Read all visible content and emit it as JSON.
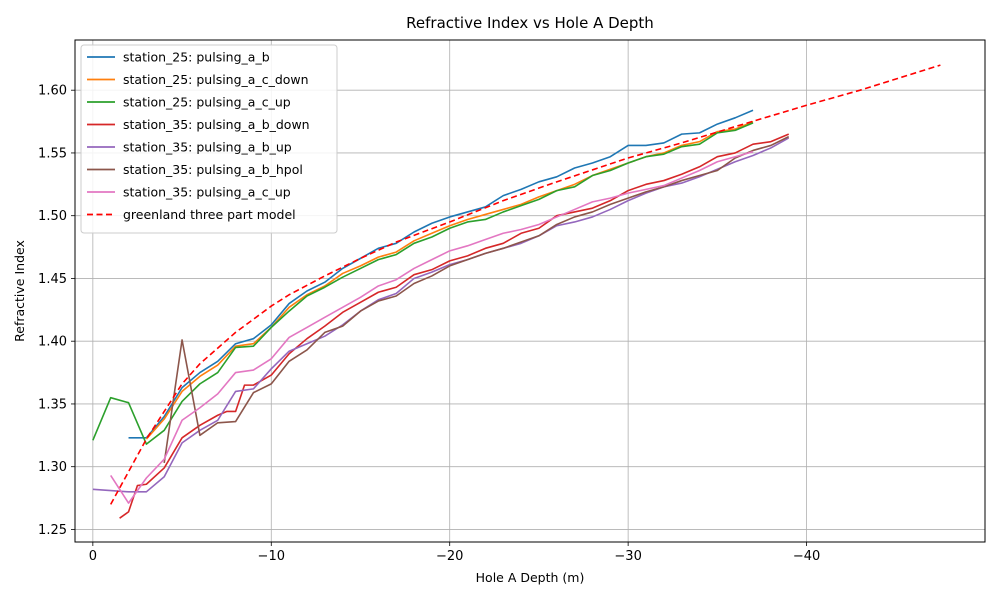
{
  "chart_data": {
    "type": "line",
    "title": "Refractive Index vs Hole A Depth",
    "xlabel": "Hole A Depth (m)",
    "ylabel": "Refractive Index",
    "xlim": [
      1,
      -50
    ],
    "ylim": [
      1.24,
      1.64
    ],
    "x_ticks": [
      0,
      -10,
      -20,
      -30,
      -40
    ],
    "x_tick_labels": [
      "0",
      "−10",
      "−20",
      "−30",
      "−40"
    ],
    "y_ticks": [
      1.25,
      1.3,
      1.35,
      1.4,
      1.45,
      1.5,
      1.55,
      1.6
    ],
    "y_tick_labels": [
      "1.25",
      "1.30",
      "1.35",
      "1.40",
      "1.45",
      "1.50",
      "1.55",
      "1.60"
    ],
    "grid": true,
    "legend_position": "top-left",
    "series": [
      {
        "name": "station_25: pulsing_a_b",
        "color": "#1f77b4",
        "dash": "solid",
        "x": [
          -2,
          -3,
          -4,
          -5,
          -6,
          -7,
          -8,
          -9,
          -10,
          -11,
          -12,
          -13,
          -14,
          -15,
          -16,
          -17,
          -18,
          -19,
          -20,
          -21,
          -22,
          -23,
          -24,
          -25,
          -26,
          -27,
          -28,
          -29,
          -30,
          -31,
          -32,
          -33,
          -34,
          -35,
          -36,
          -37
        ],
        "y": [
          1.323,
          1.323,
          1.34,
          1.363,
          1.375,
          1.384,
          1.398,
          1.402,
          1.413,
          1.43,
          1.44,
          1.447,
          1.458,
          1.466,
          1.474,
          1.478,
          1.487,
          1.494,
          1.499,
          1.503,
          1.507,
          1.516,
          1.521,
          1.527,
          1.531,
          1.538,
          1.542,
          1.547,
          1.556,
          1.556,
          1.558,
          1.565,
          1.566,
          1.573,
          1.578,
          1.584
        ]
      },
      {
        "name": "station_25: pulsing_a_c_down",
        "color": "#ff7f0e",
        "dash": "solid",
        "x": [
          -3,
          -4,
          -5,
          -6,
          -7,
          -8,
          -9,
          -10,
          -11,
          -12,
          -13,
          -14,
          -15,
          -16,
          -17,
          -18,
          -19,
          -20,
          -21,
          -22,
          -23,
          -24,
          -25,
          -26,
          -27,
          -28,
          -29,
          -30,
          -31,
          -32,
          -33,
          -34,
          -35,
          -36,
          -37
        ],
        "y": [
          1.322,
          1.338,
          1.36,
          1.372,
          1.381,
          1.396,
          1.398,
          1.411,
          1.427,
          1.437,
          1.444,
          1.454,
          1.46,
          1.467,
          1.471,
          1.48,
          1.486,
          1.492,
          1.497,
          1.501,
          1.505,
          1.509,
          1.515,
          1.52,
          1.525,
          1.532,
          1.537,
          1.542,
          1.547,
          1.55,
          1.556,
          1.559,
          1.567,
          1.569,
          1.575
        ]
      },
      {
        "name": "station_25: pulsing_a_c_up",
        "color": "#2ca02c",
        "dash": "solid",
        "x": [
          0,
          -1,
          -2,
          -3,
          -4,
          -5,
          -6,
          -7,
          -8,
          -9,
          -10,
          -11,
          -12,
          -13,
          -14,
          -15,
          -16,
          -17,
          -18,
          -19,
          -20,
          -21,
          -22,
          -23,
          -24,
          -25,
          -26,
          -27,
          -28,
          -29,
          -30,
          -31,
          -32,
          -33,
          -34,
          -35,
          -36,
          -37
        ],
        "y": [
          1.321,
          1.355,
          1.351,
          1.318,
          1.329,
          1.352,
          1.366,
          1.375,
          1.395,
          1.396,
          1.411,
          1.424,
          1.436,
          1.443,
          1.451,
          1.458,
          1.465,
          1.469,
          1.478,
          1.483,
          1.49,
          1.495,
          1.497,
          1.503,
          1.508,
          1.513,
          1.52,
          1.523,
          1.532,
          1.536,
          1.542,
          1.547,
          1.549,
          1.555,
          1.557,
          1.566,
          1.568,
          1.574
        ]
      },
      {
        "name": "station_35: pulsing_a_b_down",
        "color": "#d62728",
        "dash": "solid",
        "x": [
          -1.5,
          -2,
          -2.5,
          -3,
          -4,
          -5,
          -6,
          -7,
          -7.5,
          -8,
          -8.5,
          -9,
          -10,
          -11,
          -12,
          -13,
          -14,
          -15,
          -16,
          -17,
          -18,
          -19,
          -20,
          -21,
          -22,
          -23,
          -24,
          -25,
          -26,
          -27,
          -28,
          -29,
          -30,
          -31,
          -32,
          -33,
          -34,
          -35,
          -36,
          -37,
          -38,
          -39
        ],
        "y": [
          1.259,
          1.264,
          1.285,
          1.286,
          1.299,
          1.323,
          1.333,
          1.341,
          1.344,
          1.344,
          1.365,
          1.365,
          1.373,
          1.39,
          1.402,
          1.412,
          1.423,
          1.431,
          1.439,
          1.443,
          1.453,
          1.457,
          1.464,
          1.468,
          1.474,
          1.478,
          1.486,
          1.49,
          1.5,
          1.503,
          1.506,
          1.512,
          1.52,
          1.525,
          1.528,
          1.533,
          1.539,
          1.547,
          1.55,
          1.557,
          1.559,
          1.565
        ]
      },
      {
        "name": "station_35: pulsing_a_b_up",
        "color": "#9467bd",
        "dash": "solid",
        "x": [
          0,
          -1,
          -2,
          -3,
          -4,
          -5,
          -6,
          -7,
          -8,
          -9,
          -10,
          -11,
          -12,
          -13,
          -14,
          -15,
          -16,
          -17,
          -18,
          -19,
          -20,
          -21,
          -22,
          -23,
          -24,
          -25,
          -26,
          -27,
          -28,
          -29,
          -30,
          -31,
          -32,
          -33,
          -34,
          -35,
          -36,
          -37,
          -38,
          -39
        ],
        "y": [
          1.282,
          1.281,
          1.28,
          1.28,
          1.292,
          1.319,
          1.329,
          1.337,
          1.36,
          1.362,
          1.378,
          1.392,
          1.398,
          1.404,
          1.413,
          1.424,
          1.433,
          1.438,
          1.45,
          1.455,
          1.461,
          1.465,
          1.47,
          1.474,
          1.478,
          1.484,
          1.492,
          1.495,
          1.499,
          1.505,
          1.512,
          1.518,
          1.523,
          1.526,
          1.531,
          1.537,
          1.543,
          1.548,
          1.554,
          1.562
        ]
      },
      {
        "name": "station_35: pulsing_a_b_hpol",
        "color": "#8c564b",
        "dash": "solid",
        "x": [
          -4,
          -5,
          -6,
          -7,
          -8,
          -9,
          -10,
          -11,
          -12,
          -13,
          -14,
          -15,
          -16,
          -17,
          -18,
          -19,
          -20,
          -21,
          -22,
          -23,
          -24,
          -25,
          -26,
          -27,
          -28,
          -29,
          -30,
          -31,
          -32,
          -33,
          -34,
          -35,
          -36,
          -37,
          -38,
          -39
        ],
        "y": [
          1.303,
          1.401,
          1.325,
          1.335,
          1.336,
          1.359,
          1.366,
          1.384,
          1.393,
          1.407,
          1.412,
          1.424,
          1.432,
          1.436,
          1.446,
          1.452,
          1.46,
          1.465,
          1.47,
          1.474,
          1.479,
          1.484,
          1.493,
          1.499,
          1.503,
          1.509,
          1.514,
          1.519,
          1.523,
          1.528,
          1.532,
          1.536,
          1.546,
          1.552,
          1.556,
          1.563
        ]
      },
      {
        "name": "station_35: pulsing_a_c_up",
        "color": "#e377c2",
        "dash": "solid",
        "x": [
          -1,
          -2,
          -3,
          -4,
          -5,
          -6,
          -7,
          -8,
          -9,
          -10,
          -11,
          -12,
          -13,
          -14,
          -15,
          -16,
          -17,
          -18,
          -19,
          -20,
          -21,
          -22,
          -23,
          -24,
          -25,
          -26,
          -27,
          -28,
          -29,
          -30,
          -31,
          -32,
          -33,
          -34,
          -35,
          -36,
          -37
        ],
        "y": [
          1.293,
          1.271,
          1.291,
          1.306,
          1.337,
          1.347,
          1.358,
          1.375,
          1.377,
          1.386,
          1.403,
          1.411,
          1.419,
          1.427,
          1.435,
          1.444,
          1.449,
          1.458,
          1.465,
          1.472,
          1.476,
          1.481,
          1.486,
          1.489,
          1.493,
          1.499,
          1.505,
          1.511,
          1.514,
          1.518,
          1.521,
          1.524,
          1.53,
          1.536,
          1.543,
          1.547,
          1.551
        ]
      },
      {
        "name": "greenland three part model",
        "color": "#ff0000",
        "dash": "dashed",
        "x": [
          -1,
          -2,
          -3,
          -4,
          -5,
          -6,
          -8,
          -10,
          -11,
          -13,
          -15,
          -17,
          -20,
          -23,
          -26,
          -30,
          -33,
          -36,
          -40,
          -43,
          -47.5
        ],
        "y": [
          1.27,
          1.296,
          1.322,
          1.344,
          1.366,
          1.382,
          1.407,
          1.428,
          1.437,
          1.452,
          1.466,
          1.479,
          1.495,
          1.512,
          1.527,
          1.546,
          1.558,
          1.571,
          1.588,
          1.6,
          1.62
        ]
      }
    ]
  }
}
